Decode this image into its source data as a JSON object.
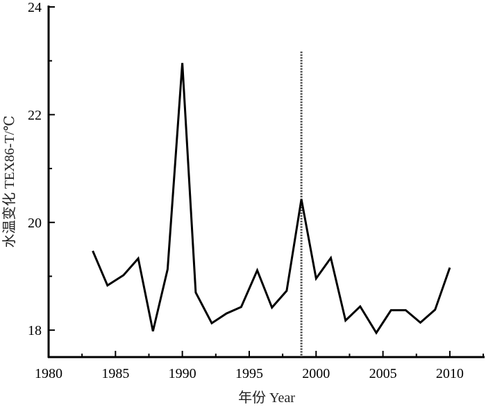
{
  "chart_data": {
    "type": "line",
    "title": "",
    "xlabel": "年份 Year",
    "ylabel": "水温变化 TEX86-T/℃",
    "xlim": [
      1980,
      2012.6
    ],
    "ylim": [
      17.5,
      24
    ],
    "x_ticks": [
      1980,
      1985,
      1990,
      1995,
      2000,
      2005,
      2010
    ],
    "x_minor_ticks": [
      1982.5,
      1987.5,
      1992.5,
      1997.5,
      2002.5,
      2007.5,
      2012.5
    ],
    "y_ticks": [
      18,
      20,
      22,
      24
    ],
    "y_minor_ticks": [
      19,
      21,
      23
    ],
    "grid": false,
    "line_color": "#000000",
    "series": [
      {
        "x": [
          1983.3,
          1984.4,
          1985.6,
          1986.7,
          1987.8,
          1988.9,
          1990.0,
          1991.0,
          1992.2,
          1993.3,
          1994.4,
          1995.6,
          1996.7,
          1997.8,
          1998.9,
          2000.0,
          2001.1,
          2002.2,
          2003.3,
          2004.5,
          2005.6,
          2006.7,
          2007.8,
          2008.9,
          2010.0
        ],
        "y": [
          19.47,
          18.83,
          19.02,
          19.33,
          17.98,
          19.13,
          22.96,
          18.7,
          18.13,
          18.31,
          18.43,
          19.11,
          18.42,
          18.73,
          20.43,
          18.96,
          19.34,
          18.18,
          18.44,
          17.95,
          18.37,
          18.37,
          18.14,
          18.38,
          19.16
        ]
      }
    ],
    "annotations": [
      {
        "type": "vertical-dotted-line",
        "x": 1998.9,
        "y_top": 23.17
      }
    ]
  }
}
